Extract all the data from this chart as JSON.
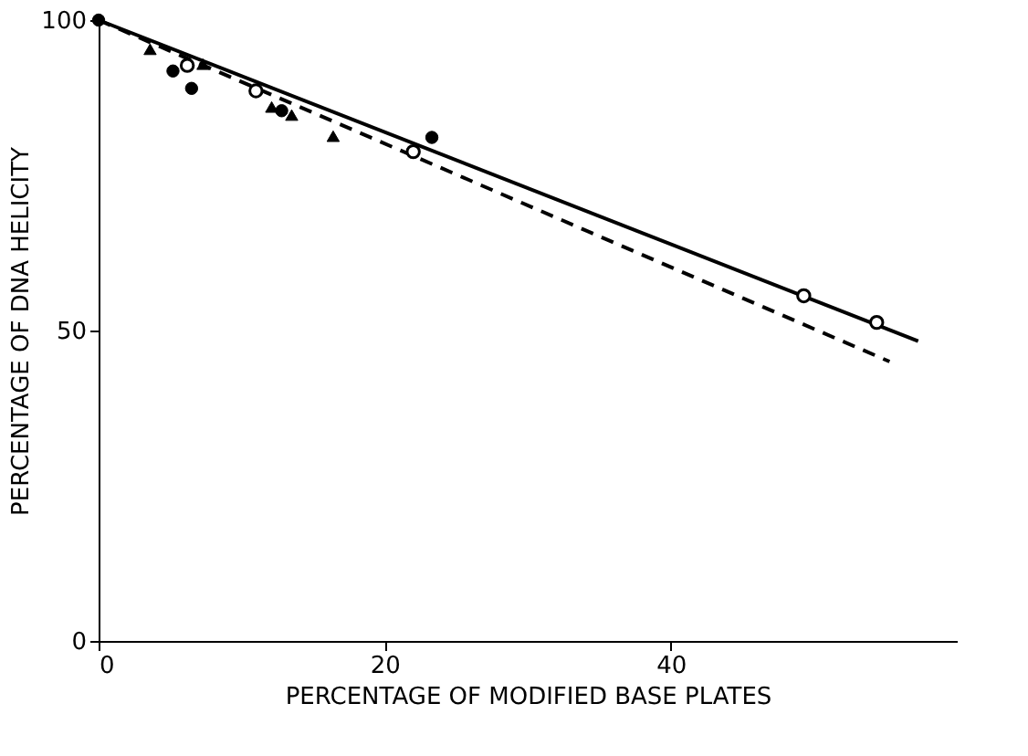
{
  "chart_data": {
    "type": "scatter",
    "xlabel": "PERCENTAGE OF MODIFIED BASE PLATES",
    "ylabel": "PERCENTAGE OF DNA HELICITY",
    "xlim": [
      0,
      60
    ],
    "xticks": [
      0,
      20,
      40
    ],
    "ylim": [
      0,
      100
    ],
    "yticks": [
      0,
      50,
      100
    ],
    "grid": false,
    "series": [
      {
        "marker": "circle",
        "color": "#000000",
        "x": [
          0,
          5.2,
          6.5,
          12.8,
          23.3
        ],
        "values": [
          100,
          91.8,
          89.0,
          85.4,
          81.1
        ]
      },
      {
        "marker": "circle",
        "color": "#ffffff",
        "x": [
          6.2,
          11.0,
          22.0,
          49.3,
          54.4
        ],
        "values": [
          92.7,
          88.6,
          78.8,
          55.6,
          51.3
        ]
      },
      {
        "marker": "triangle",
        "color": "#000000",
        "x": [
          3.6,
          7.3,
          12.1,
          13.5,
          16.4
        ],
        "values": [
          95.3,
          92.9,
          86.0,
          84.7,
          81.3
        ]
      },
      {
        "type": "line",
        "line_style": "solid",
        "color": "#000000",
        "x": [
          0,
          57.3
        ],
        "values": [
          100,
          48.3
        ]
      },
      {
        "type": "line",
        "line_style": "dashed",
        "color": "#000000",
        "x": [
          0,
          55.3
        ],
        "values": [
          100,
          45.0
        ]
      }
    ]
  }
}
